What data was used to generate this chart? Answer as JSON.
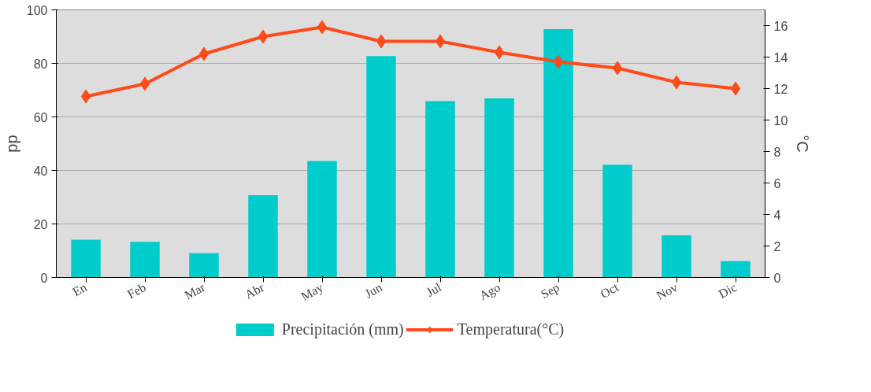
{
  "chart_data": {
    "type": "bar",
    "ylabel": "pp",
    "y2label": "°C",
    "categories": [
      "En",
      "Feb",
      "Mar",
      "Abr",
      "May",
      "Jun",
      "Jul",
      "Ago",
      "Sep",
      "Oct",
      "Nov",
      "Dic"
    ],
    "series": [
      {
        "name": "Precipitación (mm)",
        "color": "#00cccc",
        "values": [
          14.1,
          13.3,
          9.1,
          30.7,
          43.5,
          82.7,
          65.9,
          66.9,
          92.8,
          42.1,
          15.7,
          6.1
        ]
      },
      {
        "name": "Temperatura(°C)",
        "type": "line",
        "axis": "y2",
        "color": "#ff4a1a",
        "marker": "diamond",
        "values": [
          11.5,
          12.3,
          14.2,
          15.3,
          15.9,
          15.0,
          15.0,
          14.3,
          13.7,
          13.3,
          12.4,
          12.0
        ]
      }
    ],
    "ylim": [
      0,
      100
    ],
    "yticks": [
      0,
      20,
      40,
      60,
      80,
      100
    ],
    "y2lim": [
      0,
      17
    ],
    "y2ticks": [
      0,
      2,
      4,
      6,
      8,
      10,
      12,
      14,
      16
    ],
    "grid": "y",
    "legend": "bottom"
  }
}
